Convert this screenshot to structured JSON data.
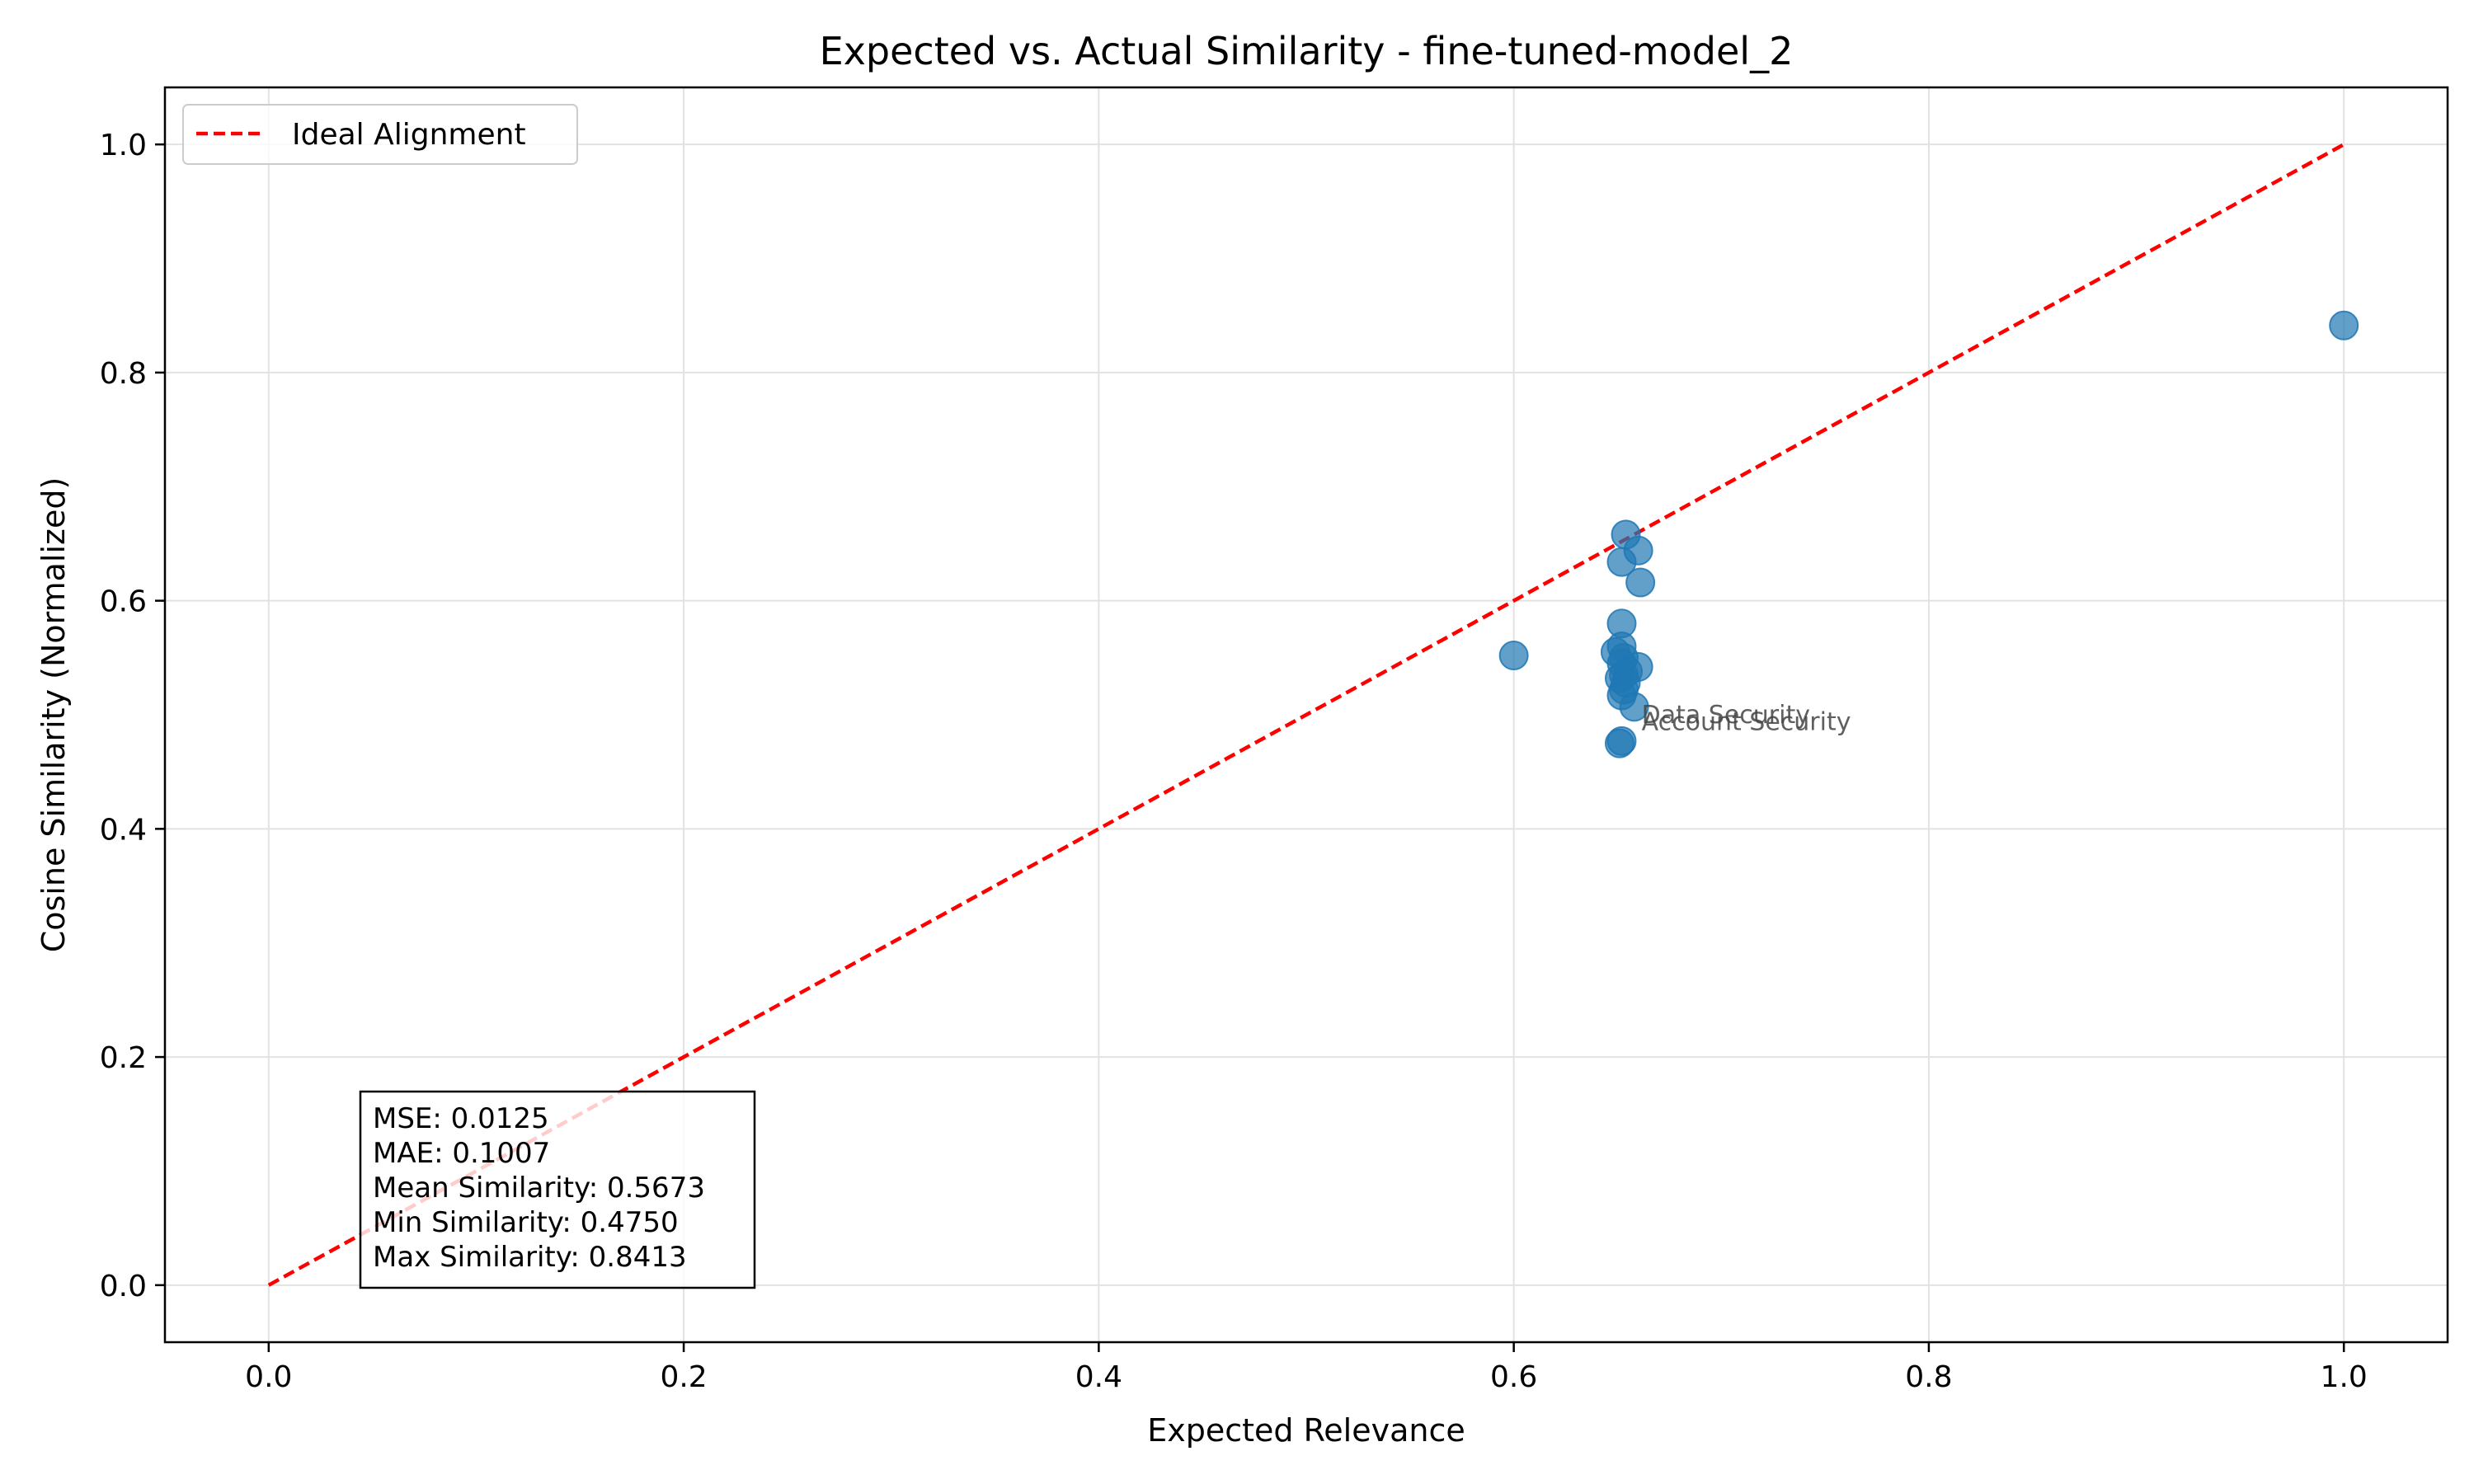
{
  "chart_data": {
    "type": "scatter",
    "title": "Expected vs. Actual Similarity - fine-tuned-model_2",
    "xlabel": "Expected Relevance",
    "ylabel": "Cosine Similarity (Normalized)",
    "xlim": [
      -0.05,
      1.05
    ],
    "ylim": [
      -0.05,
      1.05
    ],
    "xticks": [
      0.0,
      0.2,
      0.4,
      0.6,
      0.8,
      1.0
    ],
    "yticks": [
      0.0,
      0.2,
      0.4,
      0.6,
      0.8,
      1.0
    ],
    "xtick_labels": [
      "0.0",
      "0.2",
      "0.4",
      "0.6",
      "0.8",
      "1.0"
    ],
    "ytick_labels": [
      "0.0",
      "0.2",
      "0.4",
      "0.6",
      "0.8",
      "1.0"
    ],
    "grid": true,
    "legend": {
      "position": "upper-left",
      "entries": [
        "Ideal Alignment"
      ]
    },
    "colors": {
      "points": "#1f77b4",
      "ideal_line": "#ff0000"
    },
    "ideal_line": {
      "name": "Ideal Alignment",
      "x": [
        0.0,
        1.0
      ],
      "y": [
        0.0,
        1.0
      ]
    },
    "series": [
      {
        "x": [
          1.0,
          0.6,
          0.654,
          0.652,
          0.66,
          0.661,
          0.652,
          0.649,
          0.652,
          0.653,
          0.66,
          0.652,
          0.655,
          0.651,
          0.653,
          0.654,
          0.653,
          0.652,
          0.658,
          0.652,
          0.651
        ],
        "y": [
          0.8413,
          0.552,
          0.658,
          0.634,
          0.644,
          0.616,
          0.58,
          0.555,
          0.56,
          0.55,
          0.542,
          0.545,
          0.538,
          0.532,
          0.535,
          0.528,
          0.522,
          0.517,
          0.507,
          0.477,
          0.475
        ]
      }
    ],
    "annotations": [
      {
        "text": "Data Security",
        "x": 0.66,
        "y": 0.5
      },
      {
        "text": "Account Security",
        "x": 0.66,
        "y": 0.494
      }
    ],
    "stats": {
      "mse": "MSE: 0.0125",
      "mae": "MAE: 0.1007",
      "mean": "Mean Similarity: 0.5673",
      "min": "Min Similarity: 0.4750",
      "max": "Max Similarity: 0.8413"
    }
  }
}
